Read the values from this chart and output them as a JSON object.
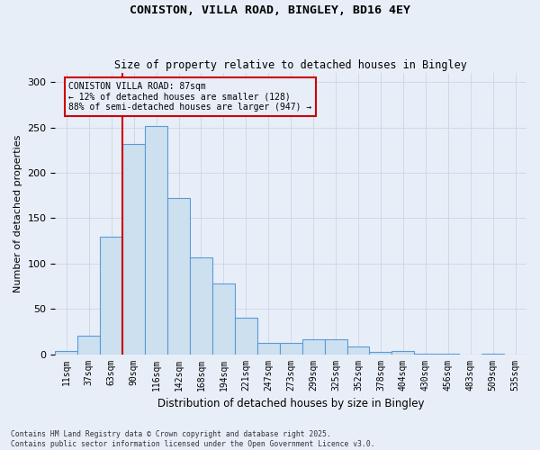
{
  "title_line1": "CONISTON, VILLA ROAD, BINGLEY, BD16 4EY",
  "title_line2": "Size of property relative to detached houses in Bingley",
  "xlabel": "Distribution of detached houses by size in Bingley",
  "ylabel": "Number of detached properties",
  "bar_color": "#cce0f0",
  "bar_edgecolor": "#5b9bd5",
  "grid_color": "#d0d8e8",
  "bg_color": "#e8eef8",
  "annotation_line_color": "#cc0000",
  "annotation_box_color": "#cc0000",
  "annotation_text": "CONISTON VILLA ROAD: 87sqm\n← 12% of detached houses are smaller (128)\n88% of semi-detached houses are larger (947) →",
  "property_size_bin": 3,
  "categories": [
    "11sqm",
    "37sqm",
    "63sqm",
    "90sqm",
    "116sqm",
    "142sqm",
    "168sqm",
    "194sqm",
    "221sqm",
    "247sqm",
    "273sqm",
    "299sqm",
    "325sqm",
    "352sqm",
    "378sqm",
    "404sqm",
    "430sqm",
    "456sqm",
    "483sqm",
    "509sqm",
    "535sqm"
  ],
  "values": [
    4,
    20,
    130,
    232,
    252,
    172,
    107,
    78,
    40,
    12,
    12,
    16,
    16,
    8,
    3,
    4,
    1,
    1,
    0,
    1,
    0
  ],
  "ylim": [
    0,
    310
  ],
  "yticks": [
    0,
    50,
    100,
    150,
    200,
    250,
    300
  ],
  "footer_line1": "Contains HM Land Registry data © Crown copyright and database right 2025.",
  "footer_line2": "Contains public sector information licensed under the Open Government Licence v3.0."
}
